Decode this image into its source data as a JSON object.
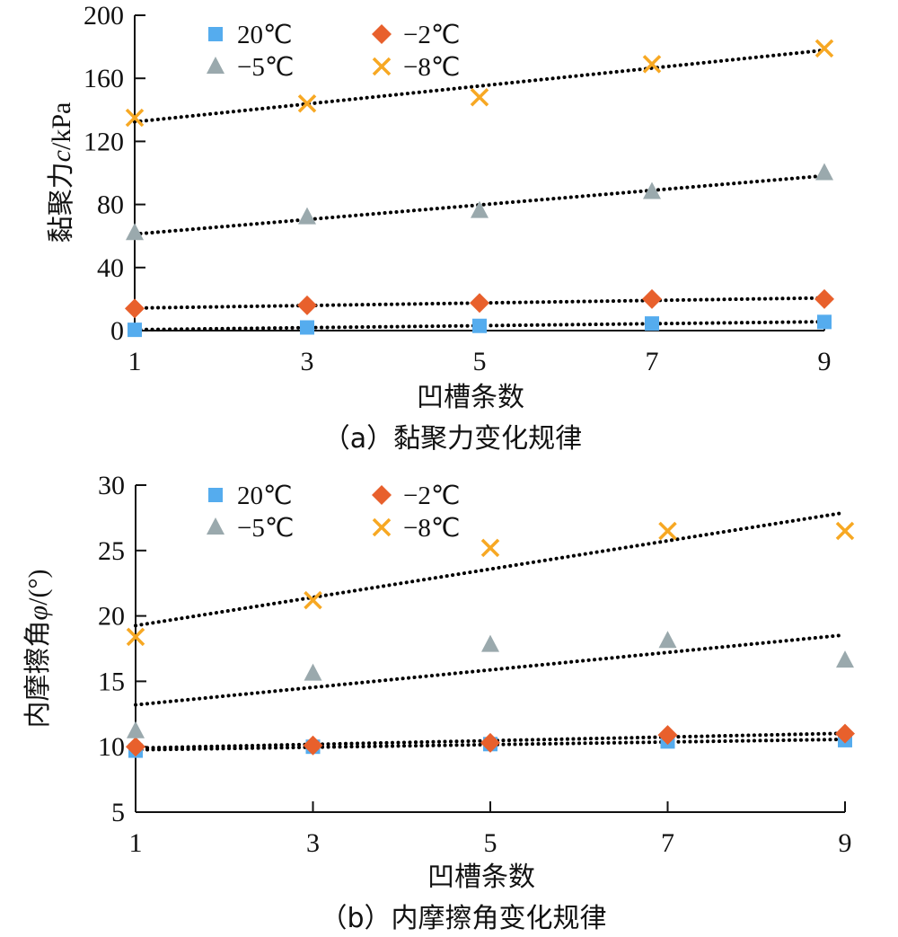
{
  "chart_data": [
    {
      "id": "a",
      "type": "scatter",
      "title": "（a）黏聚力变化规律",
      "xlabel": "凹槽条数",
      "ylabel": "黏聚力c/kPa",
      "ylabel_parts": {
        "prefix": "黏聚力",
        "symbol": "c",
        "suffix": "/kPa"
      },
      "x_ticks": [
        1,
        3,
        5,
        7,
        9
      ],
      "y_ticks": [
        0,
        40,
        80,
        120,
        160,
        200
      ],
      "xlim": [
        1,
        9
      ],
      "ylim": [
        0,
        200
      ],
      "grid": false,
      "legend_position": "top-left",
      "trendlines": "linear, dotted",
      "x": [
        1,
        3,
        5,
        7,
        9
      ],
      "series": [
        {
          "name": "20℃",
          "marker": "square",
          "color": "#55ACEE",
          "values": [
            0.5,
            2,
            3,
            4.5,
            5.5
          ]
        },
        {
          "name": "−2℃",
          "marker": "diamond",
          "color": "#E8602C",
          "values": [
            14,
            16,
            17.5,
            20,
            20
          ]
        },
        {
          "name": "−5℃",
          "marker": "triangle",
          "color": "#9AA9AD",
          "values": [
            62,
            72,
            76,
            88,
            100
          ]
        },
        {
          "name": "−8℃",
          "marker": "x",
          "color": "#F7A823",
          "values": [
            135,
            144,
            148,
            169,
            179
          ]
        }
      ]
    },
    {
      "id": "b",
      "type": "scatter",
      "title": "（b）内摩擦角变化规律",
      "xlabel": "凹槽条数",
      "ylabel": "内摩擦角φ/(°)",
      "ylabel_parts": {
        "prefix": "内摩擦角",
        "symbol": "φ",
        "suffix": "/(°)"
      },
      "x_ticks": [
        1,
        3,
        5,
        7,
        9
      ],
      "y_ticks": [
        5,
        10,
        15,
        20,
        25,
        30
      ],
      "xlim": [
        1,
        9
      ],
      "ylim": [
        5,
        30
      ],
      "grid": false,
      "legend_position": "top-left",
      "trendlines": "linear, dotted",
      "x": [
        1,
        3,
        5,
        7,
        9
      ],
      "series": [
        {
          "name": "20℃",
          "marker": "square",
          "color": "#55ACEE",
          "values": [
            9.7,
            10.0,
            10.2,
            10.4,
            10.5
          ]
        },
        {
          "name": "−2℃",
          "marker": "diamond",
          "color": "#E8602C",
          "values": [
            10.0,
            10.1,
            10.3,
            10.9,
            11.0
          ]
        },
        {
          "name": "−5℃",
          "marker": "triangle",
          "color": "#9AA9AD",
          "values": [
            11.2,
            15.6,
            17.8,
            18.1,
            16.6
          ]
        },
        {
          "name": "−8℃",
          "marker": "x",
          "color": "#F7A823",
          "values": [
            18.4,
            21.2,
            25.2,
            26.5,
            26.5
          ]
        }
      ]
    }
  ]
}
